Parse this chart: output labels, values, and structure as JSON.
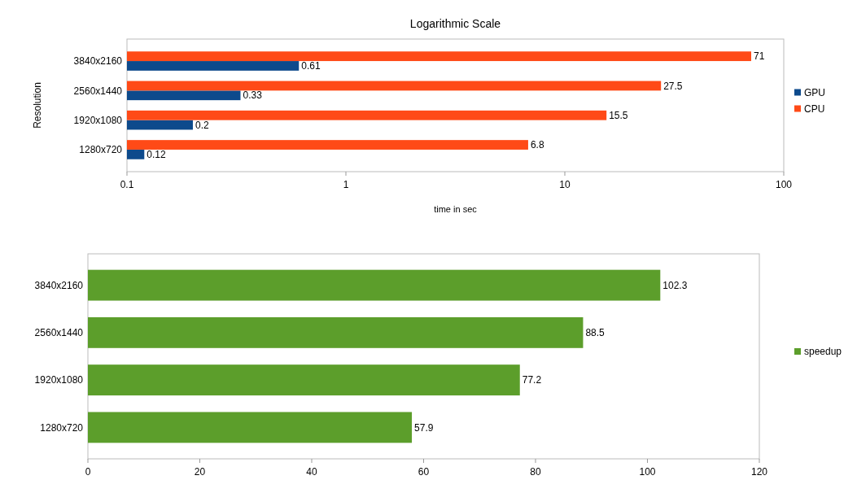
{
  "chart_data": [
    {
      "type": "bar",
      "orientation": "horizontal",
      "title": "Logarithmic Scale",
      "xlabel": "time in sec",
      "ylabel": "Resolution",
      "categories": [
        "3840x2160",
        "2560x1440",
        "1920x1080",
        "1280x720"
      ],
      "series": [
        {
          "name": "GPU",
          "color": "#0d4a8c",
          "values": [
            0.61,
            0.33,
            0.2,
            0.12
          ]
        },
        {
          "name": "CPU",
          "color": "#ff4a17",
          "values": [
            71,
            27.5,
            15.5,
            6.8
          ]
        }
      ],
      "log": "x",
      "xlim": [
        0.1,
        100
      ],
      "xticks": [
        0.1,
        1,
        10,
        100
      ],
      "legend": "right",
      "data_labels": true
    },
    {
      "type": "bar",
      "orientation": "horizontal",
      "categories": [
        "3840x2160",
        "2560x1440",
        "1920x1080",
        "1280x720"
      ],
      "series": [
        {
          "name": "speedup",
          "color": "#5c9e2b",
          "values": [
            102.3,
            88.5,
            77.2,
            57.9
          ]
        }
      ],
      "xlim": [
        0,
        120
      ],
      "xticks": [
        0,
        20,
        40,
        60,
        80,
        100,
        120
      ],
      "legend": "right",
      "data_labels": true
    }
  ]
}
